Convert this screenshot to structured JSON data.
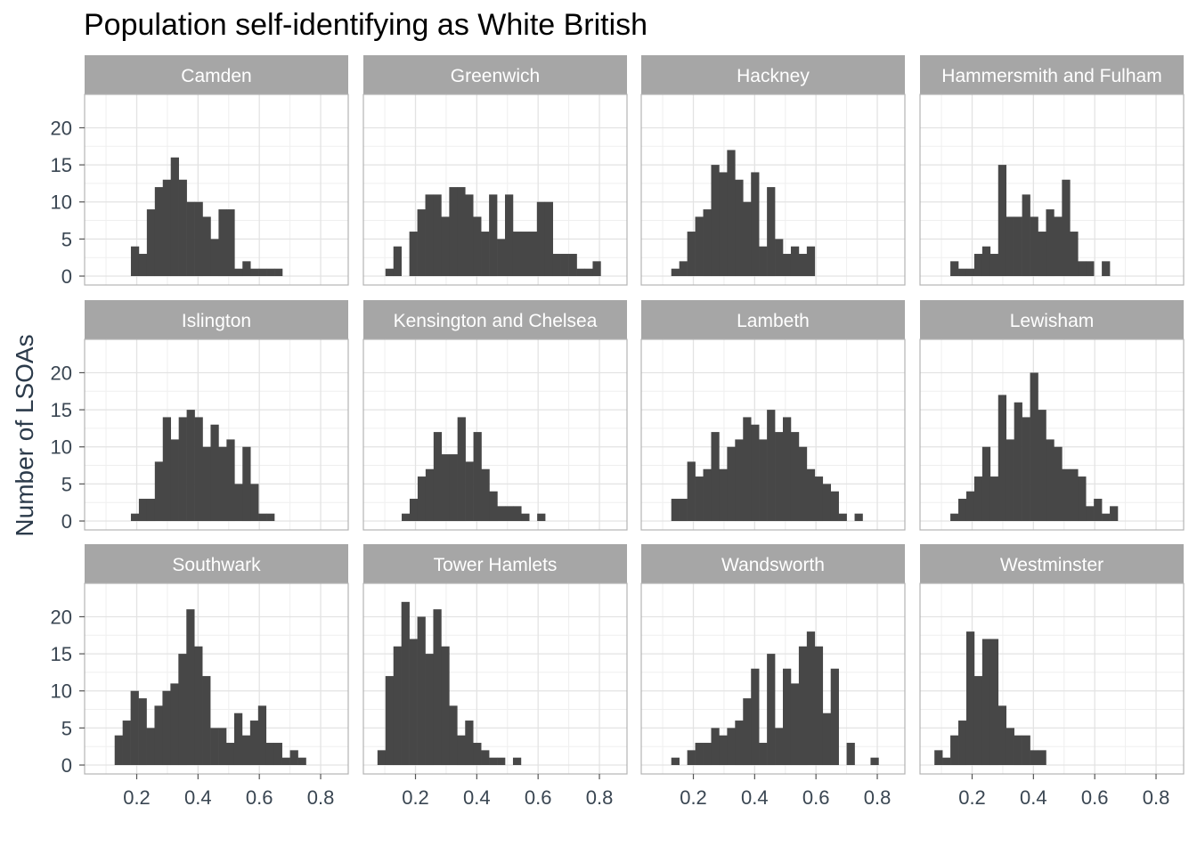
{
  "chart_data": {
    "type": "bar",
    "title": "Population self-identifying as White British",
    "xlabel": "",
    "ylabel": "Number of LSOAs",
    "xlim": [
      0.03,
      0.89
    ],
    "ylim": [
      -1.2,
      24.5
    ],
    "x_ticks": [
      "0.2",
      "0.4",
      "0.6",
      "0.8"
    ],
    "y_ticks": [
      "0",
      "5",
      "10",
      "15",
      "20"
    ],
    "bin_width": 0.026,
    "grid": true,
    "colors": {
      "bar": "#474747",
      "strip": "#a6a6a6",
      "grid": "#e3e3e3",
      "panel_border": "#b3b3b3"
    },
    "panels": [
      {
        "name": "Camden",
        "bin_start": 0.181,
        "counts": [
          4,
          3,
          9,
          12,
          13,
          16,
          13,
          10,
          10,
          8,
          5,
          9,
          9,
          1,
          2,
          1,
          1,
          1,
          1
        ]
      },
      {
        "name": "Greenwich",
        "bin_start": 0.102,
        "counts": [
          1,
          4,
          0,
          6,
          9,
          11,
          11,
          8,
          12,
          12,
          11,
          8,
          6,
          11,
          5,
          11,
          6,
          6,
          6,
          10,
          10,
          3,
          3,
          3,
          1,
          1,
          2
        ]
      },
      {
        "name": "Hackney",
        "bin_start": 0.128,
        "counts": [
          1,
          2,
          6,
          8,
          9,
          15,
          14,
          17,
          13,
          10,
          14,
          4,
          12,
          5,
          3,
          4,
          3,
          4
        ]
      },
      {
        "name": "Hammersmith and Fulham",
        "bin_start": 0.129,
        "counts": [
          2,
          1,
          1,
          3,
          4,
          3,
          15,
          8,
          8,
          11,
          8,
          6,
          9,
          8,
          13,
          6,
          2,
          2,
          0,
          2
        ]
      },
      {
        "name": "Islington",
        "bin_start": 0.181,
        "counts": [
          1,
          3,
          3,
          8,
          14,
          11,
          14,
          15,
          14,
          10,
          13,
          10,
          11,
          5,
          10,
          5,
          1,
          1
        ]
      },
      {
        "name": "Kensington and Chelsea",
        "bin_start": 0.155,
        "counts": [
          1,
          3,
          6,
          7,
          12,
          9,
          9,
          14,
          8,
          12,
          7,
          4,
          2,
          2,
          2,
          1,
          0,
          1
        ]
      },
      {
        "name": "Lambeth",
        "bin_start": 0.128,
        "counts": [
          3,
          3,
          8,
          6,
          7,
          12,
          7,
          10,
          11,
          14,
          13,
          11,
          15,
          12,
          14,
          12,
          10,
          7,
          6,
          5,
          4,
          1,
          0,
          1
        ]
      },
      {
        "name": "Lewisham",
        "bin_start": 0.129,
        "counts": [
          1,
          3,
          4,
          6,
          10,
          6,
          17,
          11,
          16,
          14,
          20,
          15,
          11,
          10,
          7,
          7,
          6,
          2,
          3,
          1,
          2
        ]
      },
      {
        "name": "Southwark",
        "bin_start": 0.128,
        "counts": [
          4,
          6,
          10,
          9,
          5,
          8,
          10,
          11,
          15,
          21,
          16,
          12,
          5,
          5,
          3,
          7,
          4,
          6,
          8,
          3,
          3,
          1,
          2,
          1
        ]
      },
      {
        "name": "Tower Hamlets",
        "bin_start": 0.076,
        "counts": [
          2,
          12,
          16,
          22,
          17,
          20,
          15,
          21,
          16,
          8,
          4,
          6,
          3,
          2,
          1,
          1,
          0,
          1
        ]
      },
      {
        "name": "Wandsworth",
        "bin_start": 0.128,
        "counts": [
          1,
          0,
          2,
          3,
          3,
          5,
          4,
          5,
          6,
          9,
          13,
          3,
          15,
          5,
          13,
          11,
          16,
          18,
          16,
          7,
          13,
          0,
          3,
          0,
          0,
          1
        ]
      },
      {
        "name": "Westminster",
        "bin_start": 0.077,
        "counts": [
          2,
          1,
          4,
          6,
          18,
          12,
          17,
          17,
          8,
          5,
          4,
          4,
          2,
          2
        ]
      }
    ]
  }
}
